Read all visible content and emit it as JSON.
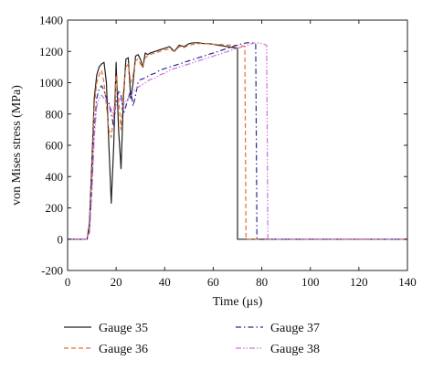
{
  "chart_data": {
    "type": "line",
    "xlabel": "Time (μs)",
    "ylabel": "von Mises stress (MPa)",
    "xlim": [
      0,
      140
    ],
    "ylim": [
      -200,
      1400
    ],
    "xticks": [
      0,
      20,
      40,
      60,
      80,
      100,
      120,
      140
    ],
    "yticks": [
      -200,
      0,
      200,
      400,
      600,
      800,
      1000,
      1200,
      1400
    ],
    "grid": false,
    "legend_position": "bottom",
    "series": [
      {
        "name": "Gauge 35",
        "color": "#222222",
        "dash": "solid",
        "x": [
          0,
          8,
          9,
          10,
          11,
          12,
          13,
          14,
          15,
          16,
          17,
          18,
          19,
          20,
          21,
          22,
          23,
          24,
          25,
          26,
          27,
          28,
          29,
          30,
          31,
          32,
          33,
          34,
          36,
          38,
          40,
          42,
          44,
          46,
          48,
          50,
          52,
          54,
          56,
          58,
          60,
          62,
          64,
          66,
          68,
          70,
          70,
          80,
          90,
          100,
          120,
          140
        ],
        "y": [
          0,
          0,
          100,
          500,
          900,
          1050,
          1100,
          1120,
          1130,
          1000,
          600,
          230,
          600,
          1130,
          700,
          450,
          900,
          1150,
          1160,
          900,
          1000,
          1170,
          1180,
          1150,
          1100,
          1190,
          1180,
          1190,
          1200,
          1210,
          1220,
          1230,
          1200,
          1240,
          1230,
          1250,
          1255,
          1255,
          1250,
          1250,
          1245,
          1240,
          1235,
          1230,
          1225,
          1220,
          0,
          0,
          0,
          0,
          0,
          0
        ]
      },
      {
        "name": "Gauge 36",
        "color": "#e07030",
        "dash": "dashed",
        "x": [
          0,
          8,
          9,
          10,
          11,
          12,
          13,
          14,
          15,
          16,
          17,
          18,
          19,
          20,
          21,
          22,
          23,
          24,
          25,
          26,
          27,
          28,
          29,
          30,
          31,
          32,
          33,
          34,
          36,
          38,
          40,
          42,
          44,
          46,
          48,
          50,
          52,
          54,
          56,
          58,
          60,
          62,
          64,
          66,
          68,
          70,
          72,
          73,
          73.5,
          80,
          90,
          100,
          120,
          140
        ],
        "y": [
          0,
          0,
          80,
          450,
          850,
          1000,
          1050,
          1080,
          1000,
          850,
          700,
          650,
          800,
          1050,
          900,
          700,
          950,
          1100,
          1120,
          1000,
          1050,
          1140,
          1150,
          1120,
          1100,
          1160,
          1170,
          1180,
          1190,
          1200,
          1210,
          1215,
          1200,
          1230,
          1225,
          1240,
          1245,
          1250,
          1250,
          1248,
          1245,
          1245,
          1243,
          1240,
          1240,
          1238,
          1235,
          1230,
          0,
          0,
          0,
          0,
          0,
          0
        ]
      },
      {
        "name": "Gauge 37",
        "color": "#2a2a8c",
        "dash": "dashdot",
        "x": [
          0,
          8,
          9,
          10,
          11,
          12,
          13,
          14,
          15,
          16,
          17,
          18,
          19,
          20,
          21,
          22,
          23,
          24,
          25,
          26,
          27,
          28,
          29,
          30,
          32,
          34,
          36,
          38,
          40,
          42,
          44,
          46,
          48,
          50,
          52,
          54,
          56,
          58,
          60,
          62,
          64,
          66,
          68,
          70,
          72,
          74,
          76,
          77.5,
          78,
          80,
          90,
          100,
          120,
          140
        ],
        "y": [
          0,
          0,
          50,
          350,
          700,
          900,
          960,
          980,
          950,
          900,
          870,
          800,
          720,
          880,
          950,
          920,
          800,
          850,
          900,
          950,
          850,
          920,
          1000,
          1020,
          1030,
          1050,
          1060,
          1080,
          1090,
          1100,
          1110,
          1120,
          1130,
          1140,
          1150,
          1160,
          1170,
          1180,
          1190,
          1200,
          1210,
          1220,
          1230,
          1240,
          1250,
          1255,
          1255,
          1250,
          0,
          0,
          0,
          0,
          0,
          0
        ]
      },
      {
        "name": "Gauge 38",
        "color": "#d070d8",
        "dash": "dashdotdot",
        "x": [
          0,
          8,
          9,
          10,
          11,
          12,
          13,
          14,
          15,
          16,
          17,
          18,
          19,
          20,
          21,
          22,
          23,
          24,
          25,
          26,
          27,
          28,
          30,
          32,
          34,
          36,
          38,
          40,
          42,
          44,
          46,
          48,
          50,
          52,
          54,
          56,
          58,
          60,
          62,
          64,
          66,
          68,
          70,
          72,
          74,
          76,
          78,
          80,
          82,
          82.5,
          90,
          100,
          120,
          140
        ],
        "y": [
          0,
          0,
          40,
          300,
          650,
          850,
          900,
          920,
          900,
          880,
          860,
          830,
          800,
          870,
          900,
          890,
          860,
          880,
          900,
          920,
          940,
          960,
          980,
          1000,
          1020,
          1030,
          1050,
          1060,
          1080,
          1090,
          1100,
          1110,
          1120,
          1130,
          1140,
          1150,
          1160,
          1170,
          1180,
          1190,
          1200,
          1210,
          1220,
          1230,
          1240,
          1250,
          1255,
          1250,
          1240,
          0,
          0,
          0,
          0,
          0
        ]
      }
    ]
  }
}
